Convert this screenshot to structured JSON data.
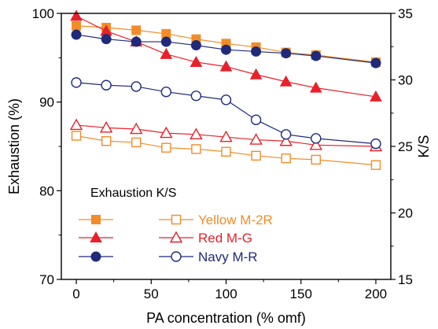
{
  "chart_data": {
    "type": "line",
    "xlabel": "PA concentration (% omf)",
    "ylabel_left": "Exhaustion (%)",
    "ylabel_right": "K/S",
    "xlim": [
      -10,
      210
    ],
    "ylim_left": [
      70,
      100
    ],
    "ylim_right": [
      15,
      35
    ],
    "x_ticks": [
      0,
      50,
      100,
      150,
      200
    ],
    "y_ticks_left": [
      70,
      80,
      90,
      100
    ],
    "y_ticks_right": [
      15,
      20,
      25,
      30,
      35
    ],
    "grid": false,
    "legend": {
      "header": "Exhaustion K/S",
      "placement": "bottom-left",
      "dyes": [
        "Yellow M-2R",
        "Red M-G",
        "Navy M-R"
      ]
    },
    "x": [
      0,
      20,
      40,
      60,
      80,
      100,
      120,
      140,
      160,
      200
    ],
    "series": [
      {
        "dye": 0,
        "kind": "exhaustion",
        "axis": "left",
        "marker": "square",
        "filled": true,
        "color": "#F28C28",
        "values": [
          98.6,
          98.4,
          98.1,
          97.7,
          97.1,
          96.6,
          96.2,
          95.6,
          95.3,
          94.5
        ]
      },
      {
        "dye": 1,
        "kind": "exhaustion",
        "axis": "left",
        "marker": "triangle",
        "filled": true,
        "color": "#E8202A",
        "values": [
          99.7,
          98.0,
          96.8,
          95.4,
          94.5,
          94.0,
          93.1,
          92.3,
          91.6,
          90.6
        ]
      },
      {
        "dye": 2,
        "kind": "exhaustion",
        "axis": "left",
        "marker": "circle",
        "filled": true,
        "color": "#1F2A7A",
        "values": [
          97.6,
          97.1,
          96.8,
          96.8,
          96.4,
          95.9,
          95.7,
          95.5,
          95.2,
          94.4
        ]
      },
      {
        "dye": 0,
        "kind": "ks",
        "axis": "right",
        "marker": "square",
        "filled": false,
        "color": "#F28C28",
        "values": [
          25.8,
          25.4,
          25.3,
          24.9,
          24.8,
          24.6,
          24.3,
          24.1,
          24.0,
          23.6
        ]
      },
      {
        "dye": 1,
        "kind": "ks",
        "axis": "right",
        "marker": "triangle",
        "filled": false,
        "color": "#E8202A",
        "values": [
          26.6,
          26.4,
          26.3,
          26.0,
          25.9,
          25.7,
          25.5,
          25.4,
          25.1,
          25.0
        ]
      },
      {
        "dye": 2,
        "kind": "ks",
        "axis": "right",
        "marker": "circle",
        "filled": false,
        "color": "#1F2A7A",
        "values": [
          29.8,
          29.6,
          29.5,
          29.1,
          28.8,
          28.5,
          27.0,
          25.9,
          25.6,
          25.2
        ]
      }
    ]
  }
}
